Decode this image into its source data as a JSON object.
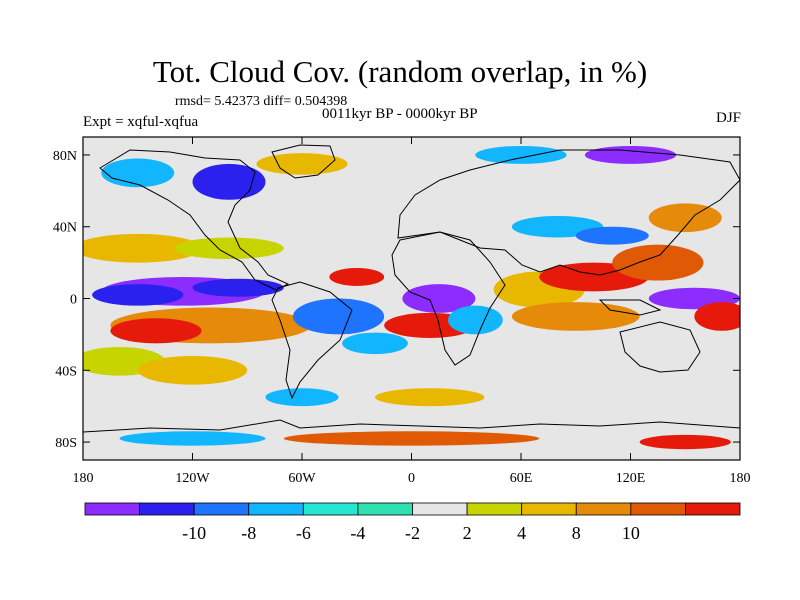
{
  "title": "Tot. Cloud Cov. (random overlap, in %)",
  "stats": "rmsd= 5.42373 diff= 0.504398",
  "period": "0011kyr BP - 0000kyr BP",
  "experiment": "Expt = xqful-xqfua",
  "season": "DJF",
  "map": {
    "projection": "cylindrical-equidistant",
    "lon_range": [
      -180,
      180
    ],
    "lat_range": [
      -90,
      90
    ],
    "lat_ticks": [
      {
        "value": 80,
        "label": "80N"
      },
      {
        "value": 40,
        "label": "40N"
      },
      {
        "value": 0,
        "label": "0"
      },
      {
        "value": -40,
        "label": "40S"
      },
      {
        "value": -80,
        "label": "80S"
      }
    ],
    "lon_ticks": [
      {
        "value": -180,
        "label": "180"
      },
      {
        "value": -120,
        "label": "120W"
      },
      {
        "value": -60,
        "label": "60W"
      },
      {
        "value": 0,
        "label": "0"
      },
      {
        "value": 60,
        "label": "60E"
      },
      {
        "value": 120,
        "label": "120E"
      },
      {
        "value": 180,
        "label": "180"
      }
    ],
    "field_colors": {
      "neutral": "#e6e6e6",
      "ocean_bg": "#e6e6e6"
    },
    "anomaly_blobs": [
      {
        "lon": -125,
        "lat": 4,
        "rx": 45,
        "ry": 8,
        "level": 0
      },
      {
        "lon": -150,
        "lat": 2,
        "rx": 25,
        "ry": 6,
        "level": 1
      },
      {
        "lon": -95,
        "lat": 6,
        "rx": 25,
        "ry": 5,
        "level": 1
      },
      {
        "lon": -110,
        "lat": -15,
        "rx": 55,
        "ry": 10,
        "level": 9
      },
      {
        "lon": -140,
        "lat": -18,
        "rx": 25,
        "ry": 7,
        "level": 11
      },
      {
        "lon": -160,
        "lat": -35,
        "rx": 25,
        "ry": 8,
        "level": 7
      },
      {
        "lon": -120,
        "lat": -40,
        "rx": 30,
        "ry": 8,
        "level": 8
      },
      {
        "lon": -150,
        "lat": 28,
        "rx": 35,
        "ry": 8,
        "level": 8
      },
      {
        "lon": -100,
        "lat": 28,
        "rx": 30,
        "ry": 6,
        "level": 7
      },
      {
        "lon": -30,
        "lat": 12,
        "rx": 15,
        "ry": 5,
        "level": 11
      },
      {
        "lon": -40,
        "lat": -10,
        "rx": 25,
        "ry": 10,
        "level": 2
      },
      {
        "lon": -20,
        "lat": -25,
        "rx": 18,
        "ry": 6,
        "level": 3
      },
      {
        "lon": 15,
        "lat": 0,
        "rx": 20,
        "ry": 8,
        "level": 0
      },
      {
        "lon": 10,
        "lat": -15,
        "rx": 25,
        "ry": 7,
        "level": 11
      },
      {
        "lon": 35,
        "lat": -12,
        "rx": 15,
        "ry": 8,
        "level": 3
      },
      {
        "lon": 70,
        "lat": 5,
        "rx": 25,
        "ry": 10,
        "level": 8
      },
      {
        "lon": 100,
        "lat": 12,
        "rx": 30,
        "ry": 8,
        "level": 11
      },
      {
        "lon": 135,
        "lat": 20,
        "rx": 25,
        "ry": 10,
        "level": 10
      },
      {
        "lon": 155,
        "lat": 0,
        "rx": 25,
        "ry": 6,
        "level": 0
      },
      {
        "lon": 170,
        "lat": -10,
        "rx": 15,
        "ry": 8,
        "level": 11
      },
      {
        "lon": 90,
        "lat": -10,
        "rx": 35,
        "ry": 8,
        "level": 9
      },
      {
        "lon": 80,
        "lat": 40,
        "rx": 25,
        "ry": 6,
        "level": 3
      },
      {
        "lon": 110,
        "lat": 35,
        "rx": 20,
        "ry": 5,
        "level": 2
      },
      {
        "lon": 150,
        "lat": 45,
        "rx": 20,
        "ry": 8,
        "level": 9
      },
      {
        "lon": -100,
        "lat": 65,
        "rx": 20,
        "ry": 10,
        "level": 1
      },
      {
        "lon": -60,
        "lat": 75,
        "rx": 25,
        "ry": 6,
        "level": 8
      },
      {
        "lon": 120,
        "lat": 80,
        "rx": 25,
        "ry": 5,
        "level": 0
      },
      {
        "lon": 60,
        "lat": 80,
        "rx": 25,
        "ry": 5,
        "level": 3
      },
      {
        "lon": -150,
        "lat": 70,
        "rx": 20,
        "ry": 8,
        "level": 3
      },
      {
        "lon": -60,
        "lat": -55,
        "rx": 20,
        "ry": 5,
        "level": 3
      },
      {
        "lon": 10,
        "lat": -55,
        "rx": 30,
        "ry": 5,
        "level": 8
      },
      {
        "lon": 0,
        "lat": -78,
        "rx": 70,
        "ry": 4,
        "level": 10
      },
      {
        "lon": -120,
        "lat": -78,
        "rx": 40,
        "ry": 4,
        "level": 3
      },
      {
        "lon": 150,
        "lat": -80,
        "rx": 25,
        "ry": 4,
        "level": 11
      }
    ]
  },
  "colorbar": {
    "colors": [
      "#8c2cff",
      "#2a21ee",
      "#1e73ff",
      "#11b6ff",
      "#26e5d3",
      "#2ee0b0",
      "#e6e6e6",
      "#c8d400",
      "#e8b800",
      "#e68a0a",
      "#e05a05",
      "#e61a0a"
    ],
    "labels": [
      {
        "pos": 1,
        "text": "-10"
      },
      {
        "pos": 2,
        "text": "-8"
      },
      {
        "pos": 3,
        "text": "-6"
      },
      {
        "pos": 4,
        "text": "-4"
      },
      {
        "pos": 5,
        "text": "-2"
      },
      {
        "pos": 6,
        "text": "2"
      },
      {
        "pos": 7,
        "text": "4"
      },
      {
        "pos": 8,
        "text": "8"
      },
      {
        "pos": 9,
        "text": "10"
      }
    ]
  }
}
